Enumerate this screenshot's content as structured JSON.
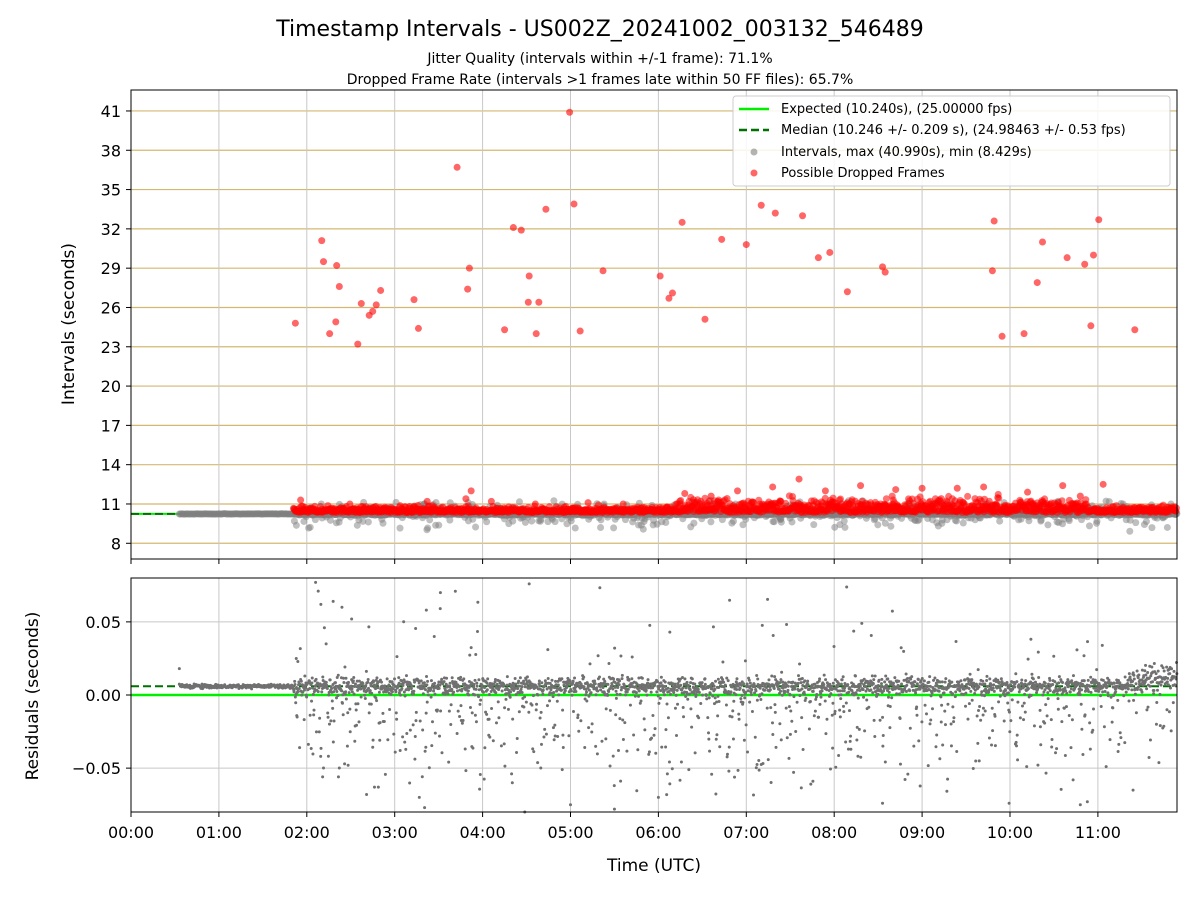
{
  "chart_data": {
    "type": "scatter",
    "title": "Timestamp Intervals - US002Z_20241002_003132_546489",
    "subtitles": [
      "Jitter Quality (intervals within +/-1 frame): 71.1%",
      "Dropped Frame Rate (intervals >1 frames late within 50 FF files): 65.7%"
    ],
    "xlabel": "Time (UTC)",
    "x_range_hours": [
      0,
      11.9
    ],
    "x_ticks": [
      "00:00",
      "01:00",
      "02:00",
      "03:00",
      "04:00",
      "05:00",
      "06:00",
      "07:00",
      "08:00",
      "09:00",
      "10:00",
      "11:00"
    ],
    "grid": true,
    "legend_position": "top-right",
    "top_panel": {
      "ylabel": "Intervals (seconds)",
      "ylim": [
        6.8,
        42.6
      ],
      "y_ticks": [
        "8",
        "11",
        "14",
        "17",
        "20",
        "23",
        "26",
        "29",
        "32",
        "35",
        "38",
        "41"
      ],
      "expected_interval": 10.24,
      "median_interval": 10.246,
      "data_start_hour": 0.55,
      "data_end_hour": 11.9,
      "legend": [
        "Expected (10.240s), (25.00000 fps)",
        "Median (10.246 +/- 0.209 s), (24.98463 +/- 0.53 fps)",
        "Intervals, max (40.990s), min (8.429s)",
        "Possible Dropped Frames"
      ],
      "dropped_frames": [
        [
          1.87,
          24.8
        ],
        [
          1.93,
          11.3
        ],
        [
          2.17,
          31.1
        ],
        [
          2.19,
          29.5
        ],
        [
          2.26,
          24.0
        ],
        [
          2.33,
          24.9
        ],
        [
          2.34,
          29.2
        ],
        [
          2.37,
          27.6
        ],
        [
          2.49,
          11.0
        ],
        [
          2.58,
          23.2
        ],
        [
          2.62,
          26.3
        ],
        [
          2.71,
          25.4
        ],
        [
          2.75,
          25.7
        ],
        [
          2.79,
          26.2
        ],
        [
          2.84,
          27.3
        ],
        [
          3.22,
          26.6
        ],
        [
          3.27,
          24.4
        ],
        [
          3.37,
          11.2
        ],
        [
          3.71,
          36.7
        ],
        [
          3.81,
          11.4
        ],
        [
          3.83,
          27.4
        ],
        [
          3.85,
          29.0
        ],
        [
          3.87,
          12.0
        ],
        [
          4.25,
          24.3
        ],
        [
          4.35,
          32.1
        ],
        [
          4.44,
          31.9
        ],
        [
          4.52,
          26.4
        ],
        [
          4.53,
          28.4
        ],
        [
          4.61,
          24.0
        ],
        [
          4.64,
          26.4
        ],
        [
          4.72,
          33.5
        ],
        [
          4.99,
          40.9
        ],
        [
          5.04,
          33.9
        ],
        [
          5.11,
          24.2
        ],
        [
          5.37,
          28.8
        ],
        [
          6.02,
          28.4
        ],
        [
          6.12,
          26.7
        ],
        [
          6.16,
          27.1
        ],
        [
          6.27,
          32.5
        ],
        [
          6.53,
          25.1
        ],
        [
          6.72,
          31.2
        ],
        [
          7.0,
          30.8
        ],
        [
          7.17,
          33.8
        ],
        [
          7.33,
          33.2
        ],
        [
          7.64,
          33.0
        ],
        [
          7.82,
          29.8
        ],
        [
          7.95,
          30.2
        ],
        [
          8.15,
          27.2
        ],
        [
          8.55,
          29.1
        ],
        [
          8.58,
          28.7
        ],
        [
          9.8,
          28.8
        ],
        [
          9.82,
          32.6
        ],
        [
          9.91,
          23.8
        ],
        [
          10.16,
          24.0
        ],
        [
          10.31,
          27.9
        ],
        [
          10.37,
          31.0
        ],
        [
          10.65,
          29.8
        ],
        [
          10.85,
          29.3
        ],
        [
          10.92,
          24.6
        ],
        [
          10.95,
          30.0
        ],
        [
          11.01,
          32.7
        ],
        [
          11.06,
          12.5
        ],
        [
          11.42,
          24.3
        ],
        [
          6.3,
          11.8
        ],
        [
          6.6,
          11.6
        ],
        [
          6.9,
          12.0
        ],
        [
          7.3,
          12.3
        ],
        [
          7.6,
          12.9
        ],
        [
          7.9,
          12.0
        ],
        [
          8.3,
          12.4
        ],
        [
          8.7,
          12.1
        ],
        [
          9.0,
          12.2
        ],
        [
          9.4,
          12.2
        ],
        [
          9.7,
          12.3
        ],
        [
          10.2,
          11.9
        ],
        [
          10.6,
          12.4
        ],
        [
          10.8,
          11.6
        ],
        [
          4.1,
          11.2
        ],
        [
          4.6,
          11.0
        ],
        [
          5.2,
          11.1
        ],
        [
          5.6,
          11.0
        ]
      ]
    },
    "bottom_panel": {
      "ylabel": "Residuals (seconds)",
      "ylim": [
        -0.08,
        0.08
      ],
      "y_ticks": [
        "−0.05",
        "0.00",
        "0.05"
      ],
      "expected_residual": 0.0,
      "median_residual": 0.006,
      "outliers": [
        [
          0.55,
          0.018
        ],
        [
          1.88,
          0.025
        ],
        [
          1.89,
          -0.015
        ],
        [
          2.1,
          0.077
        ],
        [
          2.13,
          0.071
        ],
        [
          2.16,
          0.062
        ],
        [
          2.2,
          0.046
        ],
        [
          2.3,
          0.064
        ],
        [
          2.4,
          0.06
        ],
        [
          2.47,
          -0.048
        ],
        [
          2.18,
          -0.056
        ],
        [
          2.68,
          -0.068
        ],
        [
          2.77,
          -0.063
        ],
        [
          3.28,
          -0.07
        ],
        [
          3.36,
          0.058
        ],
        [
          3.45,
          0.04
        ],
        [
          3.52,
          0.07
        ],
        [
          4.53,
          0.076
        ],
        [
          6.13,
          0.043
        ],
        [
          2.51,
          0.052
        ],
        [
          2.22,
          0.035
        ],
        [
          2.36,
          -0.056
        ],
        [
          3.34,
          -0.077
        ],
        [
          4.48,
          -0.08
        ],
        [
          5.0,
          -0.075
        ],
        [
          5.5,
          -0.078
        ],
        [
          6.0,
          -0.07
        ],
        [
          8.55,
          -0.074
        ],
        [
          9.99,
          -0.074
        ],
        [
          10.8,
          -0.075
        ],
        [
          10.88,
          -0.073
        ],
        [
          11.4,
          -0.065
        ]
      ]
    }
  }
}
